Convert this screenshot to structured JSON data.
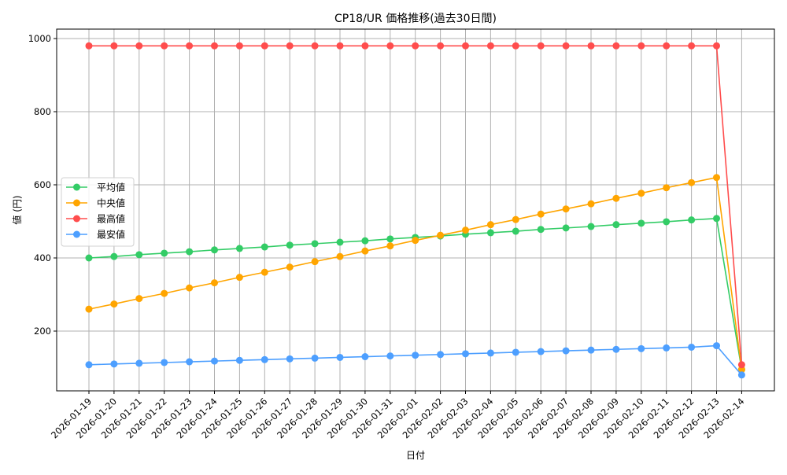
{
  "chart_data": {
    "type": "line",
    "title": "CP18/UR 価格推移(過去30日間)",
    "xlabel": "日付",
    "ylabel": "値 (円)",
    "ylim": [
      35,
      1025
    ],
    "yticks": [
      200,
      400,
      600,
      800,
      1000
    ],
    "grid": true,
    "legend_position": "center left",
    "x": [
      "2026-01-19",
      "2026-01-20",
      "2026-01-21",
      "2026-01-22",
      "2026-01-23",
      "2026-01-24",
      "2026-01-25",
      "2026-01-26",
      "2026-01-27",
      "2026-01-28",
      "2026-01-29",
      "2026-01-30",
      "2026-01-31",
      "2026-02-01",
      "2026-02-02",
      "2026-02-03",
      "2026-02-04",
      "2026-02-05",
      "2026-02-06",
      "2026-02-07",
      "2026-02-08",
      "2026-02-09",
      "2026-02-10",
      "2026-02-11",
      "2026-02-12",
      "2026-02-13",
      "2026-02-14"
    ],
    "series": [
      {
        "name": "平均値",
        "color": "#33cc66",
        "values": [
          400,
          404,
          409,
          413,
          417,
          422,
          426,
          430,
          435,
          439,
          443,
          447,
          452,
          456,
          460,
          465,
          469,
          473,
          478,
          482,
          486,
          491,
          495,
          499,
          504,
          508,
          95
        ]
      },
      {
        "name": "中央値",
        "color": "#ffa500",
        "values": [
          260,
          274,
          289,
          303,
          318,
          332,
          347,
          361,
          375,
          390,
          404,
          419,
          433,
          448,
          462,
          476,
          491,
          505,
          520,
          534,
          548,
          563,
          577,
          592,
          606,
          620,
          95
        ]
      },
      {
        "name": "最高値",
        "color": "#ff4d4d",
        "values": [
          980,
          980,
          980,
          980,
          980,
          980,
          980,
          980,
          980,
          980,
          980,
          980,
          980,
          980,
          980,
          980,
          980,
          980,
          980,
          980,
          980,
          980,
          980,
          980,
          980,
          980,
          108
        ]
      },
      {
        "name": "最安値",
        "color": "#4d9fff",
        "values": [
          108,
          110,
          112,
          114,
          116,
          118,
          120,
          122,
          124,
          126,
          128,
          130,
          132,
          134,
          136,
          138,
          140,
          142,
          144,
          146,
          148,
          150,
          152,
          154,
          156,
          160,
          80
        ]
      }
    ]
  }
}
